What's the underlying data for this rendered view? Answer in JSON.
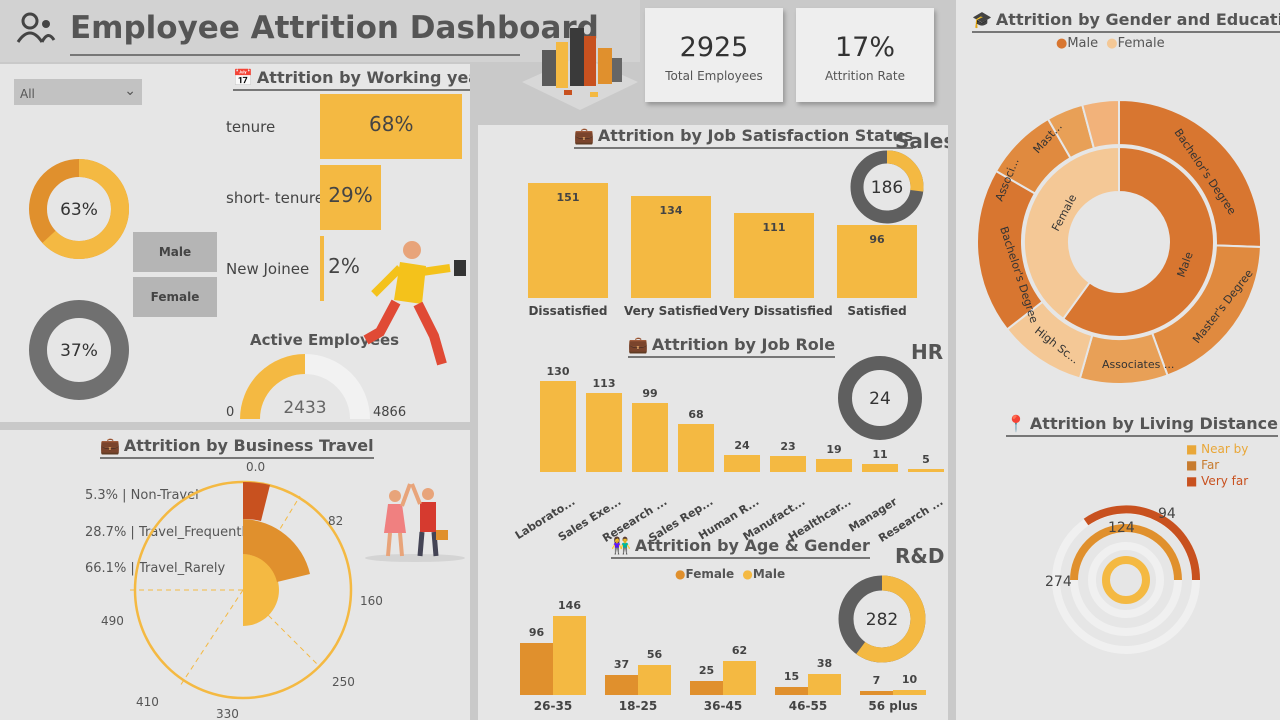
{
  "header": {
    "title": "Employee Attrition Dashboard"
  },
  "kpis": [
    {
      "value": "2925",
      "label": "Total Employees"
    },
    {
      "value": "17%",
      "label": "Attrition Rate"
    }
  ],
  "filter": {
    "selected": "All"
  },
  "gender_donuts": [
    {
      "label": "63%",
      "fraction": 0.63
    },
    {
      "label": "37%",
      "fraction": 0.37
    }
  ],
  "gender_buttons": {
    "male": "Male",
    "female": "Female"
  },
  "working_year": {
    "title": "Attrition by Working year",
    "rows": [
      {
        "label": "tenure",
        "value": "68%",
        "pct": 68
      },
      {
        "label": "short- tenure",
        "value": "29%",
        "pct": 29
      },
      {
        "label": "New Joinee",
        "value": "2%",
        "pct": 2
      }
    ]
  },
  "active_employees": {
    "title": "Active Employees",
    "value": "2433",
    "min": "0",
    "max": "4866",
    "fraction": 0.5
  },
  "business_travel": {
    "title": "Attrition by Business Travel",
    "legend": [
      "5.3% | Non-Travel",
      "28.7% | Travel_Frequently",
      "66.1% | Travel_Rarely"
    ],
    "ticks": [
      "0.0",
      "82",
      "160",
      "250",
      "330",
      "410",
      "490"
    ]
  },
  "job_satisfaction": {
    "title": "Attrition by Job Satisfaction Status",
    "dept_label": "Sales",
    "dept_value": "186",
    "dept_fraction": 0.27
  },
  "job_role": {
    "title": "Attrition by Job Role",
    "dept_label": "HR",
    "dept_value": "24",
    "dept_fraction": 0.05
  },
  "age_gender": {
    "title": "Attrition by Age & Gender",
    "legend": [
      "Female",
      "Male"
    ],
    "dept_label": "R&D",
    "dept_value": "282",
    "dept_fraction": 0.6
  },
  "gender_education": {
    "title": "Attrition by Gender and Education",
    "legend": [
      "Male",
      "Female"
    ],
    "inner": [
      "Male",
      "Female"
    ],
    "outer": [
      "Bachelor's Degree",
      "Master's Degree",
      "Associates ...",
      "High Sc...",
      "Bachelor's Degree",
      "Associ...",
      "Mast..."
    ]
  },
  "living_distance": {
    "title": "Attrition by Living Distance",
    "legend": [
      "Near by",
      "Far",
      "Very far"
    ],
    "values": [
      "274",
      "124",
      "94"
    ]
  },
  "colors": {
    "yellow": "#f4b942",
    "orange": "#e0902d",
    "darkorange": "#c8511f",
    "gray": "#707070"
  },
  "chart_data": [
    {
      "type": "bar",
      "title": "Attrition by Job Satisfaction Status",
      "categories": [
        "Dissatisfied",
        "Very Satisfied",
        "Very Dissatisfied",
        "Satisfied"
      ],
      "values": [
        151,
        134,
        111,
        96
      ]
    },
    {
      "type": "bar",
      "title": "Attrition by Job Role",
      "categories": [
        "Laborato...",
        "Sales Exe...",
        "Research ...",
        "Sales Rep...",
        "Human R...",
        "Manufact...",
        "Healthcar...",
        "Manager",
        "Research ..."
      ],
      "values": [
        130,
        113,
        99,
        68,
        24,
        23,
        19,
        11,
        5
      ]
    },
    {
      "type": "bar",
      "title": "Attrition by Age & Gender",
      "categories": [
        "26-35",
        "18-25",
        "36-45",
        "46-55",
        "56 plus"
      ],
      "series": [
        {
          "name": "Female",
          "values": [
            96,
            37,
            25,
            15,
            7
          ]
        },
        {
          "name": "Male",
          "values": [
            146,
            56,
            62,
            38,
            10
          ]
        }
      ]
    }
  ]
}
